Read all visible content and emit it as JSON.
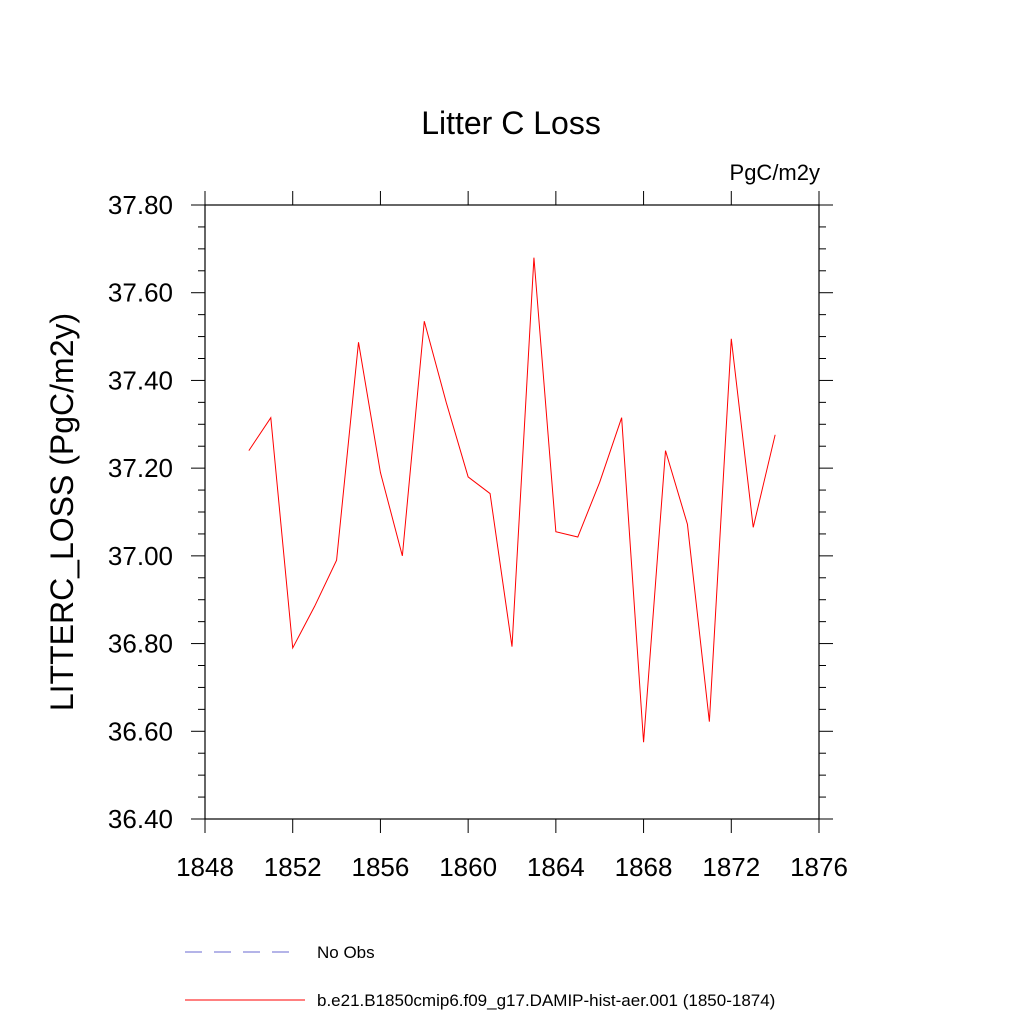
{
  "chart_data": {
    "type": "line",
    "title": "Litter C Loss",
    "units": "PgC/m2y",
    "ylabel": "LITTERC_LOSS  (PgC/m2y)",
    "xlabel": "",
    "xlim": [
      1848,
      1876
    ],
    "ylim": [
      36.4,
      37.8
    ],
    "x_ticks": [
      1848,
      1852,
      1856,
      1860,
      1864,
      1868,
      1872,
      1876
    ],
    "y_ticks": [
      "36.40",
      "36.60",
      "36.80",
      "37.00",
      "37.20",
      "37.40",
      "37.60",
      "37.80"
    ],
    "grid": false,
    "legend_position": "bottom",
    "legend": [
      {
        "label": "No Obs",
        "color": "#6a6ad0",
        "style": "dashed"
      },
      {
        "label": "b.e21.B1850cmip6.f09_g17.DAMIP-hist-aer.001 (1850-1874)",
        "color": "#ff0000",
        "style": "solid"
      }
    ],
    "series": [
      {
        "name": "b.e21.B1850cmip6.f09_g17.DAMIP-hist-aer.001 (1850-1874)",
        "color": "#ff0000",
        "x": [
          1850,
          1851,
          1852,
          1853,
          1854,
          1855,
          1856,
          1857,
          1858,
          1859,
          1860,
          1861,
          1862,
          1863,
          1864,
          1865,
          1866,
          1867,
          1868,
          1869,
          1870,
          1871,
          1872,
          1873,
          1874
        ],
        "y": [
          37.24,
          37.315,
          36.79,
          36.885,
          36.99,
          37.487,
          37.19,
          37.0,
          37.535,
          37.35,
          37.18,
          37.142,
          36.793,
          37.68,
          37.055,
          37.043,
          37.168,
          37.315,
          36.575,
          37.24,
          37.072,
          36.622,
          37.495,
          37.065,
          37.276
        ]
      }
    ]
  }
}
